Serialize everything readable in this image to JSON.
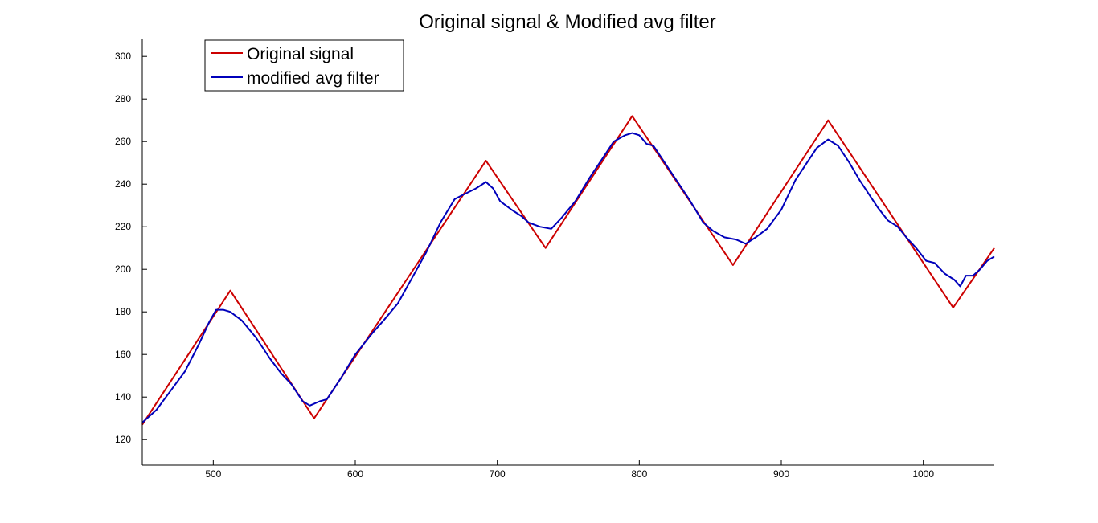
{
  "chart_data": {
    "type": "line",
    "title": "Original signal & Modified avg filter",
    "xlabel": "",
    "ylabel": "",
    "xlim": [
      450,
      1050
    ],
    "ylim": [
      108,
      308
    ],
    "xticks": [
      500,
      600,
      700,
      800,
      900,
      1000
    ],
    "yticks": [
      120,
      140,
      160,
      180,
      200,
      220,
      240,
      260,
      280,
      300
    ],
    "grid": false,
    "legend_position": "top-left",
    "series": [
      {
        "name": "Original signal",
        "color": "#cc0000",
        "points": [
          [
            450,
            127
          ],
          [
            512,
            190
          ],
          [
            571,
            130
          ],
          [
            692,
            251
          ],
          [
            734,
            210
          ],
          [
            795,
            272
          ],
          [
            866,
            202
          ],
          [
            933,
            270
          ],
          [
            1021,
            182
          ],
          [
            1050,
            210
          ]
        ]
      },
      {
        "name": "modified avg filter",
        "color": "#0000bb",
        "points": [
          [
            450,
            128
          ],
          [
            460,
            134
          ],
          [
            470,
            143
          ],
          [
            480,
            152
          ],
          [
            490,
            165
          ],
          [
            497,
            175
          ],
          [
            502,
            181
          ],
          [
            507,
            181
          ],
          [
            512,
            180
          ],
          [
            520,
            176
          ],
          [
            530,
            168
          ],
          [
            540,
            158
          ],
          [
            548,
            151
          ],
          [
            555,
            146
          ],
          [
            563,
            138
          ],
          [
            568,
            136
          ],
          [
            575,
            138
          ],
          [
            580,
            139
          ],
          [
            590,
            149
          ],
          [
            600,
            160
          ],
          [
            612,
            170
          ],
          [
            620,
            176
          ],
          [
            630,
            184
          ],
          [
            640,
            196
          ],
          [
            650,
            208
          ],
          [
            660,
            222
          ],
          [
            670,
            233
          ],
          [
            676,
            235
          ],
          [
            685,
            238
          ],
          [
            692,
            241
          ],
          [
            697,
            238
          ],
          [
            702,
            232
          ],
          [
            710,
            228
          ],
          [
            717,
            225
          ],
          [
            722,
            222
          ],
          [
            730,
            220
          ],
          [
            738,
            219
          ],
          [
            745,
            224
          ],
          [
            755,
            232
          ],
          [
            765,
            243
          ],
          [
            775,
            253
          ],
          [
            782,
            260
          ],
          [
            790,
            263
          ],
          [
            795,
            264
          ],
          [
            800,
            263
          ],
          [
            805,
            259
          ],
          [
            810,
            258
          ],
          [
            818,
            250
          ],
          [
            825,
            243
          ],
          [
            835,
            233
          ],
          [
            845,
            222
          ],
          [
            852,
            218
          ],
          [
            860,
            215
          ],
          [
            868,
            214
          ],
          [
            875,
            212
          ],
          [
            882,
            215
          ],
          [
            890,
            219
          ],
          [
            900,
            228
          ],
          [
            910,
            242
          ],
          [
            918,
            250
          ],
          [
            925,
            257
          ],
          [
            933,
            261
          ],
          [
            940,
            258
          ],
          [
            948,
            250
          ],
          [
            955,
            242
          ],
          [
            962,
            235
          ],
          [
            968,
            229
          ],
          [
            975,
            223
          ],
          [
            982,
            220
          ],
          [
            988,
            215
          ],
          [
            995,
            210
          ],
          [
            1002,
            204
          ],
          [
            1008,
            203
          ],
          [
            1015,
            198
          ],
          [
            1022,
            195
          ],
          [
            1026,
            192
          ],
          [
            1030,
            197
          ],
          [
            1035,
            197
          ],
          [
            1040,
            200
          ],
          [
            1045,
            204
          ],
          [
            1050,
            206
          ]
        ]
      }
    ]
  }
}
